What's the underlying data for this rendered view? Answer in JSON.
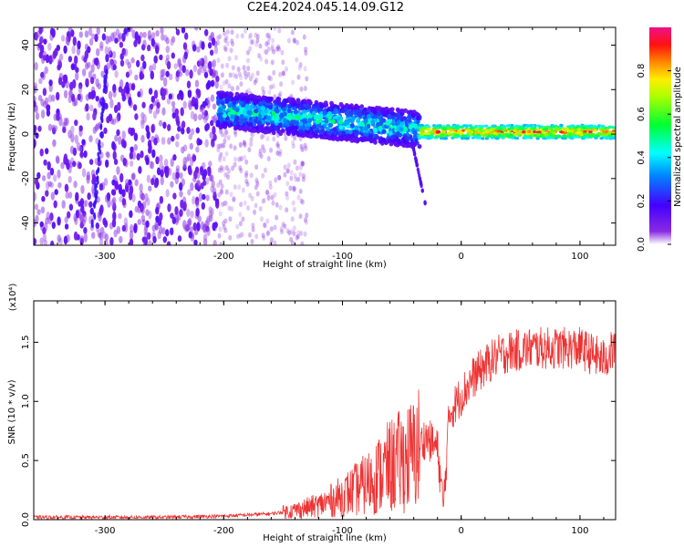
{
  "figure": {
    "title": "C2E4.2024.045.14.09.G12"
  },
  "chart_data": [
    {
      "type": "heatmap",
      "title": "C2E4.2024.045.14.09.G12",
      "xlabel": "Height of straight line (km)",
      "ylabel": "Frequency (Hz)",
      "xlim": [
        -360,
        130
      ],
      "ylim": [
        -50,
        48
      ],
      "xticks": [
        -300,
        -200,
        -100,
        0,
        100
      ],
      "yticks": [
        -40,
        -20,
        0,
        20,
        40
      ],
      "colorbar": {
        "label": "Normalized spectral amplitude",
        "range": [
          0,
          1
        ],
        "ticks": [
          "0.0",
          "0.2",
          "0.4",
          "0.6",
          "0.8"
        ],
        "colormap": "rainbow (white-violet-blue-cyan-green-yellow-red-pink)"
      },
      "regions": [
        {
          "x_range": [
            -360,
            -205
          ],
          "freq_range": [
            -50,
            48
          ],
          "amplitude": "0.05-0.15",
          "description": "broadband noise"
        },
        {
          "x_range": [
            -205,
            -130
          ],
          "freq_range": [
            -50,
            48
          ],
          "amplitude": "0.0-0.05",
          "description": "faint noise"
        },
        {
          "x_range": [
            -205,
            -35
          ],
          "freq_center_start": 11,
          "freq_center_end": 2,
          "amplitude": "0.1-0.45",
          "description": "signal band"
        },
        {
          "x_range": [
            -35,
            130
          ],
          "freq_center": 1,
          "amplitude": "0.4-0.9",
          "description": "narrow strong signal line"
        },
        {
          "x_range": [
            -312,
            -300
          ],
          "freq_range": [
            -48,
            30
          ],
          "amplitude": "0.2",
          "description": "diagonal streak"
        }
      ]
    },
    {
      "type": "line",
      "xlabel": "Height of straight line (km)",
      "ylabel": "SNR (10 * v/v)",
      "y_multiplier": "(x10⁴)",
      "xlim": [
        -360,
        130
      ],
      "ylim": [
        0,
        1.85
      ],
      "xticks": [
        -300,
        -200,
        -100,
        0,
        100
      ],
      "yticks": [
        "0.0",
        "0.5",
        "1.0",
        "1.5"
      ],
      "series": [
        {
          "color": "#ee3333",
          "x": [
            -360,
            -300,
            -250,
            -200,
            -160,
            -140,
            -120,
            -100,
            -80,
            -60,
            -40,
            -30,
            -20,
            -15,
            -10,
            0,
            10,
            20,
            30,
            40,
            60,
            80,
            100,
            110,
            120,
            130
          ],
          "y": [
            0.02,
            0.02,
            0.02,
            0.03,
            0.05,
            0.08,
            0.12,
            0.2,
            0.3,
            0.45,
            0.55,
            0.7,
            0.6,
            0.1,
            0.9,
            1.05,
            1.2,
            1.3,
            1.38,
            1.42,
            1.45,
            1.45,
            1.45,
            1.4,
            1.35,
            1.45
          ]
        }
      ]
    }
  ]
}
